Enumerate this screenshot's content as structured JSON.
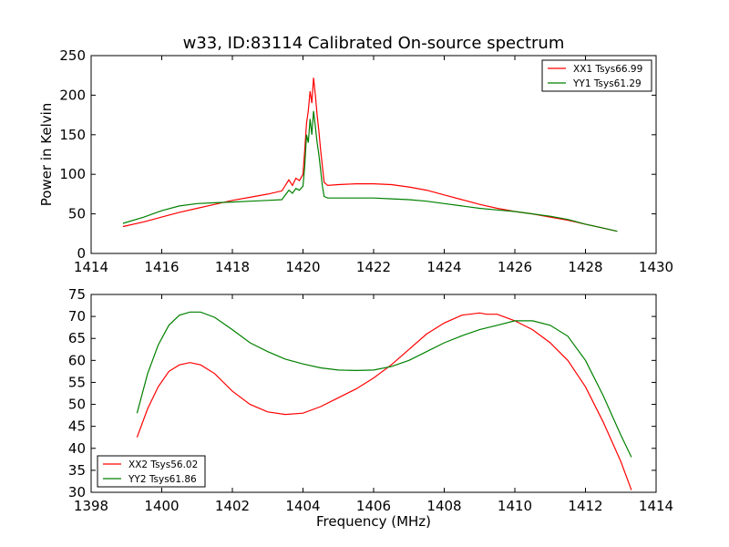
{
  "title": "w33, ID:83114 Calibrated On-source spectrum",
  "chart_data": [
    {
      "type": "line",
      "title": "w33, ID:83114 Calibrated On-source spectrum",
      "xlabel": "",
      "ylabel": "Power in Kelvin",
      "xlim": [
        1414,
        1430
      ],
      "ylim": [
        0,
        250
      ],
      "xticks": [
        1414,
        1416,
        1418,
        1420,
        1422,
        1424,
        1426,
        1428,
        1430
      ],
      "yticks": [
        0,
        50,
        100,
        150,
        200,
        250
      ],
      "grid": false,
      "legend": "top-right",
      "series": [
        {
          "name": "XX1 Tsys66.99",
          "color": "#ff0000",
          "x": [
            1414.9,
            1415.5,
            1416,
            1416.5,
            1417,
            1417.5,
            1418,
            1418.5,
            1419,
            1419.4,
            1419.6,
            1419.7,
            1419.8,
            1419.9,
            1420,
            1420.05,
            1420.1,
            1420.15,
            1420.2,
            1420.25,
            1420.3,
            1420.35,
            1420.4,
            1420.45,
            1420.5,
            1420.55,
            1420.6,
            1420.7,
            1421,
            1421.5,
            1422,
            1422.5,
            1423,
            1423.5,
            1424,
            1424.5,
            1425,
            1425.5,
            1426,
            1426.5,
            1427,
            1427.5,
            1428,
            1428.5,
            1428.9
          ],
          "values": [
            34,
            40,
            46,
            52,
            57,
            62,
            67,
            71,
            75,
            79,
            93,
            86,
            95,
            92,
            100,
            130,
            165,
            180,
            205,
            190,
            222,
            200,
            175,
            155,
            130,
            110,
            90,
            86,
            87,
            88,
            88,
            87,
            84,
            80,
            74,
            68,
            62,
            57,
            53,
            50,
            46,
            42,
            37,
            32,
            28
          ]
        },
        {
          "name": "YY1 Tsys61.29",
          "color": "#008000",
          "x": [
            1414.9,
            1415.5,
            1416,
            1416.5,
            1417,
            1417.5,
            1418,
            1418.5,
            1419,
            1419.4,
            1419.6,
            1419.7,
            1419.8,
            1419.9,
            1420,
            1420.05,
            1420.1,
            1420.15,
            1420.2,
            1420.25,
            1420.3,
            1420.35,
            1420.4,
            1420.45,
            1420.5,
            1420.55,
            1420.6,
            1420.7,
            1421,
            1421.5,
            1422,
            1422.5,
            1423,
            1423.5,
            1424,
            1424.5,
            1425,
            1425.5,
            1426,
            1426.5,
            1427,
            1427.5,
            1428,
            1428.5,
            1428.9
          ],
          "values": [
            38,
            46,
            54,
            60,
            63,
            64,
            65,
            66,
            67,
            68,
            80,
            76,
            82,
            80,
            85,
            110,
            150,
            140,
            170,
            150,
            180,
            160,
            140,
            125,
            105,
            85,
            72,
            70,
            70,
            70,
            70,
            69,
            68,
            66,
            63,
            60,
            57,
            55,
            53,
            50,
            47,
            43,
            37,
            32,
            28
          ]
        }
      ]
    },
    {
      "type": "line",
      "title": "",
      "xlabel": "Frequency (MHz)",
      "ylabel": "",
      "xlim": [
        1398,
        1414
      ],
      "ylim": [
        30,
        75
      ],
      "xticks": [
        1398,
        1400,
        1402,
        1404,
        1406,
        1408,
        1410,
        1412,
        1414
      ],
      "yticks": [
        30,
        35,
        40,
        45,
        50,
        55,
        60,
        65,
        70,
        75
      ],
      "grid": false,
      "legend": "bottom-left",
      "series": [
        {
          "name": "XX2 Tsys56.02",
          "color": "#ff0000",
          "x": [
            1399.3,
            1399.6,
            1399.9,
            1400.2,
            1400.5,
            1400.8,
            1401.1,
            1401.5,
            1402,
            1402.5,
            1403,
            1403.5,
            1404,
            1404.5,
            1405,
            1405.5,
            1406,
            1406.5,
            1407,
            1407.5,
            1408,
            1408.5,
            1409,
            1409.2,
            1409.5,
            1410,
            1410.5,
            1411,
            1411.5,
            1412,
            1412.5,
            1413,
            1413.3
          ],
          "values": [
            42.5,
            49,
            54,
            57.5,
            59,
            59.5,
            59,
            57,
            53,
            50,
            48.3,
            47.7,
            48,
            49.5,
            51.5,
            53.5,
            56,
            59,
            62.5,
            66,
            68.5,
            70.3,
            70.8,
            70.5,
            70.5,
            69,
            67,
            64,
            60,
            54,
            46,
            37,
            30.5
          ]
        },
        {
          "name": "YY2 Tsys61.86",
          "color": "#008000",
          "x": [
            1399.3,
            1399.6,
            1399.9,
            1400.2,
            1400.5,
            1400.8,
            1401.1,
            1401.5,
            1402,
            1402.5,
            1403,
            1403.5,
            1404,
            1404.5,
            1405,
            1405.5,
            1406,
            1406.5,
            1407,
            1407.5,
            1408,
            1408.5,
            1409,
            1409.5,
            1410,
            1410.5,
            1411,
            1411.5,
            1412,
            1412.5,
            1413,
            1413.3
          ],
          "values": [
            48,
            57,
            63.5,
            68,
            70.3,
            71,
            71,
            69.8,
            67,
            64,
            62,
            60.3,
            59.2,
            58.3,
            57.8,
            57.7,
            57.8,
            58.6,
            60,
            62,
            64,
            65.6,
            67,
            68,
            69,
            69,
            68,
            65.5,
            60,
            52,
            43,
            38
          ]
        }
      ]
    }
  ]
}
